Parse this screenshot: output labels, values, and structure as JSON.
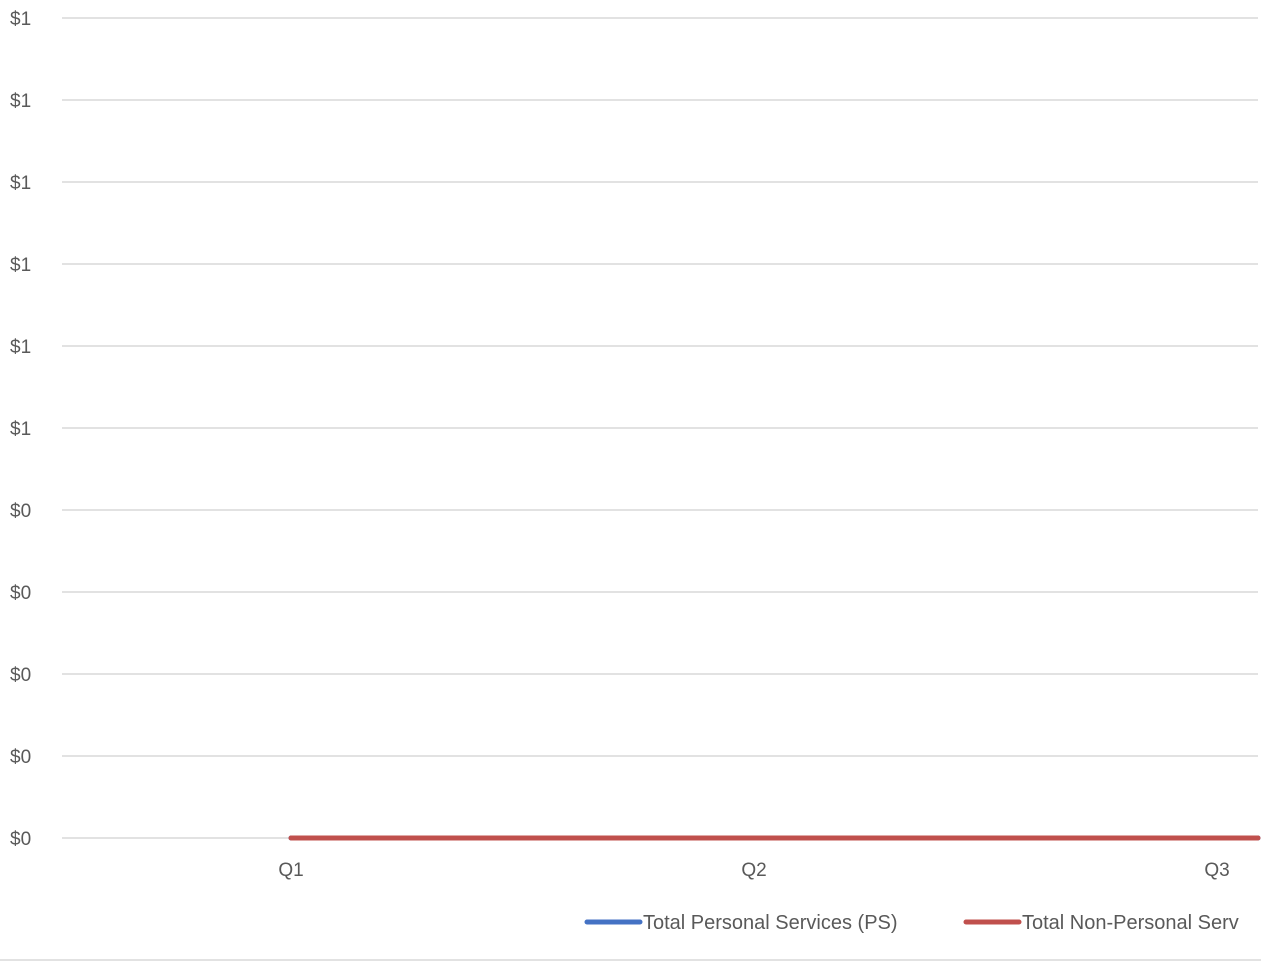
{
  "chart_data": {
    "type": "line",
    "title": "",
    "xlabel": "",
    "ylabel": "",
    "categories": [
      "Q1",
      "Q2",
      "Q3"
    ],
    "y_tick_labels": [
      "$0",
      "$0",
      "$0",
      "$0",
      "$0",
      "$1",
      "$1",
      "$1",
      "$1",
      "$1",
      "$1"
    ],
    "ylim": [
      0,
      1
    ],
    "grid": true,
    "legend_position": "bottom",
    "series": [
      {
        "name": "Total Personal Services (PS)",
        "values": [
          0,
          0,
          0
        ],
        "color": "#4472C4"
      },
      {
        "name": "Total Non-Personal Serv",
        "values": [
          0,
          0,
          0
        ],
        "color": "#C0504D"
      }
    ]
  },
  "colors": {
    "gridline": "#D9D9D9",
    "axis_text": "#595959"
  }
}
